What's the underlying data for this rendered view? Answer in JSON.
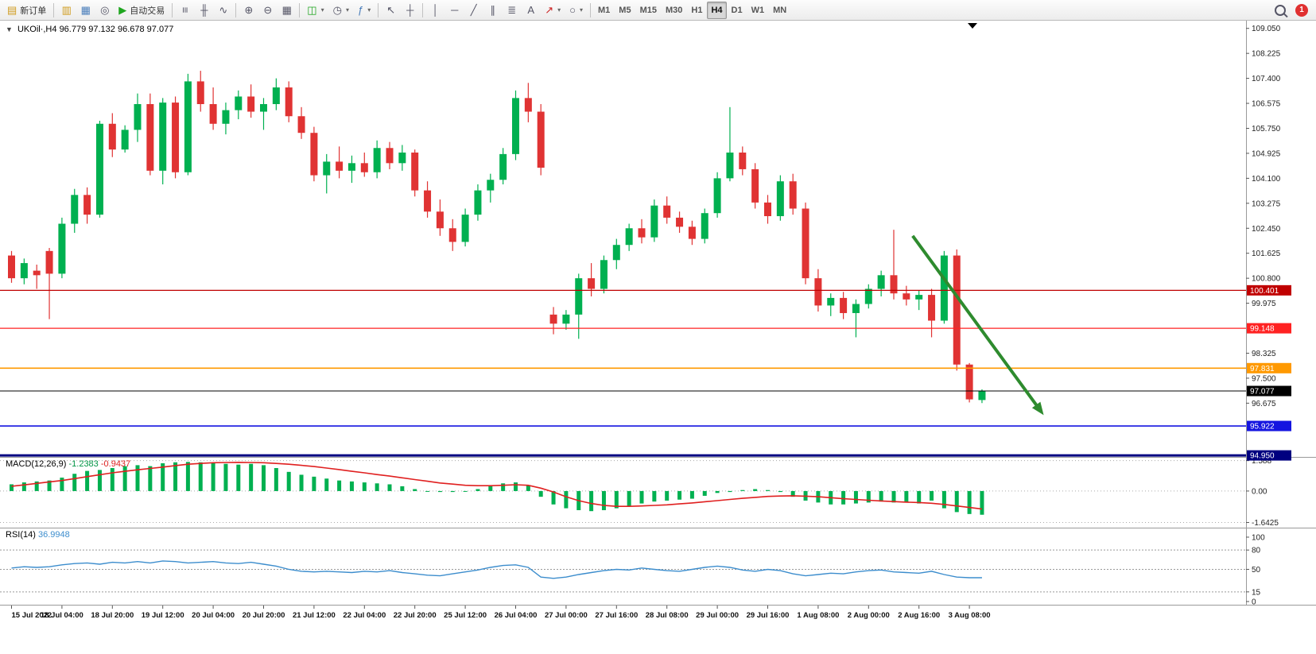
{
  "toolbar": {
    "new_order_label": "新订单",
    "autotrading_label": "自动交易",
    "timeframes": [
      "M1",
      "M5",
      "M15",
      "M30",
      "H1",
      "H4",
      "D1",
      "W1",
      "MN"
    ],
    "active_timeframe": "H4",
    "notification_count": "1"
  },
  "icons": {
    "symbol_dropdown": "▼",
    "dropdown": "▾",
    "new_order": "▤",
    "market_watch": "▥",
    "data_window": "▦",
    "navigator": "◎",
    "autotrading": "▶",
    "bars_chart": "≡",
    "candlestick_chart": "╫",
    "line_chart": "∿",
    "zoom_in": "⊕",
    "zoom_out": "⊖",
    "tile_windows": "▦",
    "new_chart": "◫",
    "profiles": "◷",
    "indicators": "ƒ",
    "cursor": "↖",
    "crosshair": "┼",
    "vertical_line": "│",
    "horizontal_line": "─",
    "trendline": "╱",
    "channel": "∥",
    "fibonacci": "≣",
    "text_tool": "A",
    "arrows_tool": "↗",
    "shapes_tool": "○"
  },
  "chart_header": {
    "symbol_period": "UKOil·,H4",
    "ohlc": "96.779 97.132 96.678 97.077"
  },
  "colors": {
    "bull": "#00b050",
    "bear": "#e03333",
    "macd_bar": "#00b050",
    "macd_signal": "#e02020",
    "rsi_line": "#3c8dcd",
    "arrow": "#2e8b2e"
  },
  "chart_data": [
    {
      "type": "candlestick",
      "symbol": "UKOil",
      "period": "H4",
      "current": {
        "open": 96.779,
        "high": 97.132,
        "low": 96.678,
        "close": 97.077
      },
      "ylim": [
        94.9,
        109.2
      ],
      "candles": [
        [
          101.55,
          101.7,
          100.65,
          100.8
        ],
        [
          100.8,
          101.45,
          100.6,
          101.3
        ],
        [
          101.05,
          101.25,
          100.45,
          100.9
        ],
        [
          101.7,
          101.8,
          99.45,
          100.95
        ],
        [
          100.95,
          102.8,
          100.8,
          102.6
        ],
        [
          102.6,
          103.75,
          102.3,
          103.55
        ],
        [
          103.55,
          103.8,
          102.6,
          102.9
        ],
        [
          102.9,
          106.0,
          102.8,
          105.9
        ],
        [
          105.9,
          106.25,
          104.8,
          105.05
        ],
        [
          105.05,
          105.85,
          104.95,
          105.7
        ],
        [
          105.7,
          106.9,
          105.3,
          106.55
        ],
        [
          106.55,
          106.9,
          104.2,
          104.35
        ],
        [
          104.35,
          106.75,
          103.9,
          106.6
        ],
        [
          106.6,
          106.8,
          104.1,
          104.3
        ],
        [
          104.3,
          107.55,
          104.2,
          107.3
        ],
        [
          107.3,
          107.65,
          106.3,
          106.55
        ],
        [
          106.55,
          107.1,
          105.7,
          105.9
        ],
        [
          105.9,
          106.6,
          105.55,
          106.35
        ],
        [
          106.35,
          107.0,
          106.05,
          106.8
        ],
        [
          106.8,
          107.2,
          106.1,
          106.3
        ],
        [
          106.3,
          106.75,
          105.7,
          106.55
        ],
        [
          106.55,
          107.4,
          106.35,
          107.1
        ],
        [
          107.1,
          107.3,
          105.95,
          106.15
        ],
        [
          106.15,
          106.45,
          105.4,
          105.6
        ],
        [
          105.6,
          105.8,
          104.0,
          104.2
        ],
        [
          104.2,
          104.9,
          103.6,
          104.65
        ],
        [
          104.65,
          105.15,
          104.1,
          104.35
        ],
        [
          104.35,
          104.85,
          103.95,
          104.6
        ],
        [
          104.6,
          104.95,
          104.15,
          104.3
        ],
        [
          104.3,
          105.35,
          104.1,
          105.1
        ],
        [
          105.1,
          105.3,
          104.4,
          104.6
        ],
        [
          104.6,
          105.2,
          104.35,
          104.95
        ],
        [
          104.95,
          105.05,
          103.5,
          103.7
        ],
        [
          103.7,
          104.0,
          102.8,
          103.0
        ],
        [
          103.0,
          103.4,
          102.2,
          102.45
        ],
        [
          102.45,
          102.75,
          101.7,
          102.0
        ],
        [
          102.0,
          103.1,
          101.85,
          102.9
        ],
        [
          102.9,
          103.9,
          102.7,
          103.7
        ],
        [
          103.7,
          104.25,
          103.3,
          104.05
        ],
        [
          104.05,
          105.1,
          103.9,
          104.9
        ],
        [
          104.9,
          107.0,
          104.7,
          106.75
        ],
        [
          106.75,
          107.25,
          105.95,
          106.3
        ],
        [
          106.3,
          106.55,
          104.2,
          104.45
        ],
        [
          99.6,
          99.85,
          98.95,
          99.3
        ],
        [
          99.3,
          99.75,
          99.1,
          99.6
        ],
        [
          99.6,
          100.95,
          98.8,
          100.8
        ],
        [
          100.8,
          101.3,
          100.2,
          100.45
        ],
        [
          100.45,
          101.55,
          100.3,
          101.4
        ],
        [
          101.4,
          102.1,
          101.1,
          101.9
        ],
        [
          101.9,
          102.6,
          101.7,
          102.45
        ],
        [
          102.45,
          102.75,
          101.95,
          102.15
        ],
        [
          102.15,
          103.4,
          102.0,
          103.2
        ],
        [
          103.2,
          103.5,
          102.6,
          102.8
        ],
        [
          102.8,
          103.0,
          102.3,
          102.5
        ],
        [
          102.5,
          102.7,
          101.9,
          102.1
        ],
        [
          102.1,
          103.1,
          101.95,
          102.95
        ],
        [
          102.95,
          104.3,
          102.8,
          104.1
        ],
        [
          104.1,
          106.45,
          104.0,
          104.95
        ],
        [
          104.95,
          105.15,
          104.2,
          104.4
        ],
        [
          104.4,
          104.6,
          103.1,
          103.3
        ],
        [
          103.3,
          103.55,
          102.6,
          102.85
        ],
        [
          102.85,
          104.2,
          102.7,
          104.0
        ],
        [
          104.0,
          104.25,
          102.9,
          103.1
        ],
        [
          103.1,
          103.3,
          100.6,
          100.8
        ],
        [
          100.8,
          101.1,
          99.7,
          99.9
        ],
        [
          99.9,
          100.3,
          99.55,
          100.15
        ],
        [
          100.15,
          100.35,
          99.45,
          99.65
        ],
        [
          99.65,
          100.1,
          98.85,
          99.95
        ],
        [
          99.95,
          100.6,
          99.8,
          100.45
        ],
        [
          100.45,
          101.05,
          100.2,
          100.9
        ],
        [
          100.9,
          102.4,
          100.1,
          100.3
        ],
        [
          100.3,
          100.55,
          99.9,
          100.1
        ],
        [
          100.1,
          100.4,
          99.75,
          100.25
        ],
        [
          100.25,
          100.45,
          98.85,
          99.4
        ],
        [
          99.4,
          101.7,
          99.3,
          101.55
        ],
        [
          101.55,
          101.75,
          97.75,
          97.95
        ],
        [
          97.95,
          98.0,
          96.7,
          96.8
        ],
        [
          96.779,
          97.132,
          96.678,
          97.077
        ]
      ],
      "label_every": 4,
      "time_labels": [
        "15 Jul 2022",
        "18 Jul 04:00",
        "18 Jul 20:00",
        "19 Jul 12:00",
        "20 Jul 04:00",
        "20 Jul 20:00",
        "21 Jul 12:00",
        "22 Jul 04:00",
        "22 Jul 20:00",
        "25 Jul 12:00",
        "26 Jul 04:00",
        "27 Jul 00:00",
        "27 Jul 16:00",
        "28 Jul 08:00",
        "29 Jul 00:00",
        "29 Jul 16:00",
        "1 Aug 08:00",
        "2 Aug 00:00",
        "2 Aug 16:00",
        "3 Aug 08:00"
      ],
      "price_axis_labels": [
        "109.050",
        "108.225",
        "107.400",
        "106.575",
        "105.750",
        "104.925",
        "104.100",
        "103.275",
        "102.450",
        "101.625",
        "100.800",
        "99.975",
        "98.325",
        "97.500",
        "96.675"
      ],
      "hlines": [
        {
          "price": 100.401,
          "label": "100.401",
          "color": "#c00000",
          "width": 1.3
        },
        {
          "price": 99.148,
          "label": "99.148",
          "color": "#ff2222",
          "width": 1.3
        },
        {
          "price": 97.831,
          "label": "97.831",
          "color": "#ff9900",
          "width": 1.6
        },
        {
          "price": 97.077,
          "label": "97.077",
          "color": "#000000",
          "width": 1
        },
        {
          "price": 95.922,
          "label": "95.922",
          "color": "#1515e0",
          "width": 1.6
        },
        {
          "price": 94.95,
          "label": "94.950",
          "color": "#000080",
          "width": 3
        }
      ],
      "arrow": {
        "from_index": 71.5,
        "from_price": 102.2,
        "to_index": 81.6,
        "to_price": 96.45
      }
    },
    {
      "type": "bar",
      "name": "MACD(12,26,9)",
      "value_main": "-1.2383",
      "value_signal": "-0.9437",
      "ylim": [
        -1.83,
        1.74
      ],
      "axis_labels": [
        "1.588",
        "0.00",
        "-1.6425"
      ],
      "histogram": [
        0.35,
        0.45,
        0.5,
        0.55,
        0.7,
        0.9,
        1.05,
        1.1,
        1.2,
        1.3,
        1.35,
        1.3,
        1.45,
        1.5,
        1.52,
        1.5,
        1.45,
        1.42,
        1.38,
        1.42,
        1.35,
        1.2,
        1.0,
        0.85,
        0.75,
        0.65,
        0.55,
        0.5,
        0.45,
        0.4,
        0.35,
        0.25,
        0.1,
        0.0,
        -0.05,
        -0.05,
        0.0,
        0.1,
        0.25,
        0.4,
        0.45,
        0.3,
        -0.3,
        -0.7,
        -0.9,
        -1.0,
        -1.05,
        -1.0,
        -0.9,
        -0.8,
        -0.65,
        -0.55,
        -0.5,
        -0.45,
        -0.4,
        -0.25,
        -0.1,
        -0.05,
        0.05,
        0.1,
        0.05,
        -0.05,
        -0.3,
        -0.5,
        -0.6,
        -0.7,
        -0.7,
        -0.65,
        -0.6,
        -0.55,
        -0.6,
        -0.6,
        -0.65,
        -0.5,
        -0.9,
        -1.1,
        -1.2,
        -1.2383
      ],
      "signal": [
        0.25,
        0.32,
        0.4,
        0.48,
        0.55,
        0.65,
        0.75,
        0.85,
        0.95,
        1.03,
        1.11,
        1.18,
        1.25,
        1.33,
        1.4,
        1.44,
        1.48,
        1.49,
        1.5,
        1.49,
        1.48,
        1.44,
        1.4,
        1.34,
        1.28,
        1.2,
        1.12,
        1.03,
        0.95,
        0.86,
        0.78,
        0.69,
        0.6,
        0.51,
        0.42,
        0.36,
        0.3,
        0.28,
        0.28,
        0.3,
        0.33,
        0.3,
        0.15,
        -0.05,
        -0.3,
        -0.5,
        -0.65,
        -0.75,
        -0.8,
        -0.8,
        -0.78,
        -0.75,
        -0.72,
        -0.67,
        -0.62,
        -0.56,
        -0.5,
        -0.44,
        -0.38,
        -0.33,
        -0.28,
        -0.26,
        -0.25,
        -0.27,
        -0.3,
        -0.35,
        -0.4,
        -0.44,
        -0.48,
        -0.52,
        -0.55,
        -0.58,
        -0.6,
        -0.64,
        -0.7,
        -0.78,
        -0.86,
        -0.9437
      ]
    },
    {
      "type": "line",
      "name": "RSI(14)",
      "value": "36.9948",
      "ylim": [
        -2.5,
        112.3
      ],
      "axis_labels": [
        "100",
        "80",
        "50",
        "15",
        "0"
      ],
      "levels": [
        80,
        50,
        15
      ],
      "values": [
        52,
        54,
        53,
        54,
        57,
        59,
        60,
        58,
        61,
        60,
        62,
        60,
        63,
        62,
        60,
        61,
        62,
        60,
        59,
        61,
        58,
        55,
        50,
        47,
        46,
        47,
        46,
        45,
        47,
        46,
        48,
        45,
        43,
        41,
        40,
        43,
        46,
        49,
        53,
        56,
        57,
        53,
        38,
        36,
        38,
        42,
        45,
        48,
        50,
        49,
        52,
        50,
        48,
        47,
        50,
        53,
        55,
        53,
        49,
        47,
        50,
        48,
        43,
        40,
        42,
        44,
        43,
        46,
        48,
        49,
        46,
        45,
        44,
        47,
        42,
        38,
        37,
        36.99
      ]
    }
  ]
}
